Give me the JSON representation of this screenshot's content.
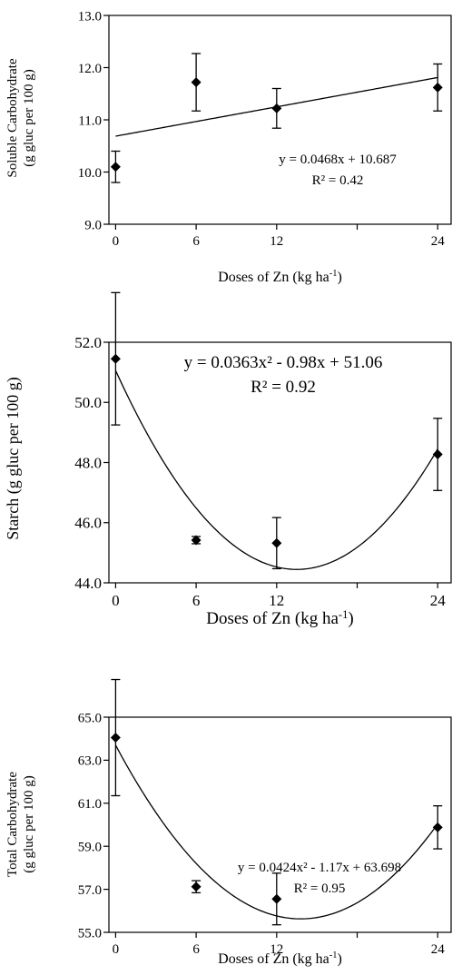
{
  "chart_data": [
    {
      "type": "scatter",
      "xlabel": "Doses of Zn",
      "xunit_prefix": "(kg ha",
      "xunit_exp": "-1",
      "xunit_suffix": ")",
      "ylabel_lines": [
        "Soluble Carbohydrate",
        "(g gluc per 100 g)"
      ],
      "xticks": [
        0,
        6,
        12,
        24
      ],
      "ytick_labels": [
        "9.0",
        "10.0",
        "11.0",
        "12.0",
        "13.0"
      ],
      "yticks": [
        9,
        10,
        11,
        12,
        13
      ],
      "ylim": [
        9,
        13
      ],
      "xlim": [
        -0.5,
        25
      ],
      "series": [
        {
          "x": [
            0,
            6,
            12,
            24
          ],
          "y": [
            10.1,
            11.72,
            11.22,
            11.62
          ],
          "err": [
            0.3,
            0.55,
            0.38,
            0.45
          ]
        }
      ],
      "fit": {
        "kind": "linear",
        "coef": [
          10.687,
          0.0468
        ]
      },
      "equation": "y = 0.0468x + 10.687",
      "r2": "R² = 0.42"
    },
    {
      "type": "scatter",
      "xlabel": "Doses of Zn",
      "xunit_prefix": "(kg ha",
      "xunit_exp": "-1",
      "xunit_suffix": ")",
      "ylabel_lines": [
        "Starch (g gluc per 100 g)"
      ],
      "xticks": [
        0,
        6,
        12,
        24
      ],
      "ytick_labels": [
        "44.0",
        "46.0",
        "48.0",
        "50.0",
        "52.0"
      ],
      "yticks": [
        44,
        46,
        48,
        50,
        52
      ],
      "ylim": [
        44,
        52
      ],
      "xlim": [
        -0.5,
        25
      ],
      "series": [
        {
          "x": [
            0,
            6,
            12,
            24
          ],
          "y": [
            51.45,
            45.42,
            45.32,
            48.27
          ],
          "err": [
            2.2,
            0.12,
            0.85,
            1.2
          ]
        }
      ],
      "fit": {
        "kind": "quadratic",
        "coef": [
          51.06,
          -0.98,
          0.0363
        ]
      },
      "equation": "y = 0.0363x² - 0.98x + 51.06",
      "r2": "R² = 0.92"
    },
    {
      "type": "scatter",
      "xlabel": "Doses of Zn",
      "xunit_prefix": "(kg ha",
      "xunit_exp": "-1",
      "xunit_suffix": ")",
      "ylabel_lines": [
        "Total Carbohydrate",
        "(g gluc per 100 g)"
      ],
      "xticks": [
        0,
        6,
        12,
        24
      ],
      "ytick_labels": [
        "55.0",
        "57.0",
        "59.0",
        "61.0",
        "63.0",
        "65.0"
      ],
      "yticks": [
        55,
        57,
        59,
        61,
        63,
        65
      ],
      "ylim": [
        55,
        65
      ],
      "xlim": [
        -0.5,
        25
      ],
      "series": [
        {
          "x": [
            0,
            6,
            12,
            24
          ],
          "y": [
            64.05,
            57.12,
            56.55,
            59.88
          ],
          "err": [
            2.7,
            0.28,
            1.2,
            1.0
          ]
        }
      ],
      "fit": {
        "kind": "quadratic",
        "coef": [
          63.698,
          -1.17,
          0.0424
        ]
      },
      "equation": "y = 0.0424x² - 1.17x + 63.698",
      "r2": "R² = 0.95"
    }
  ]
}
